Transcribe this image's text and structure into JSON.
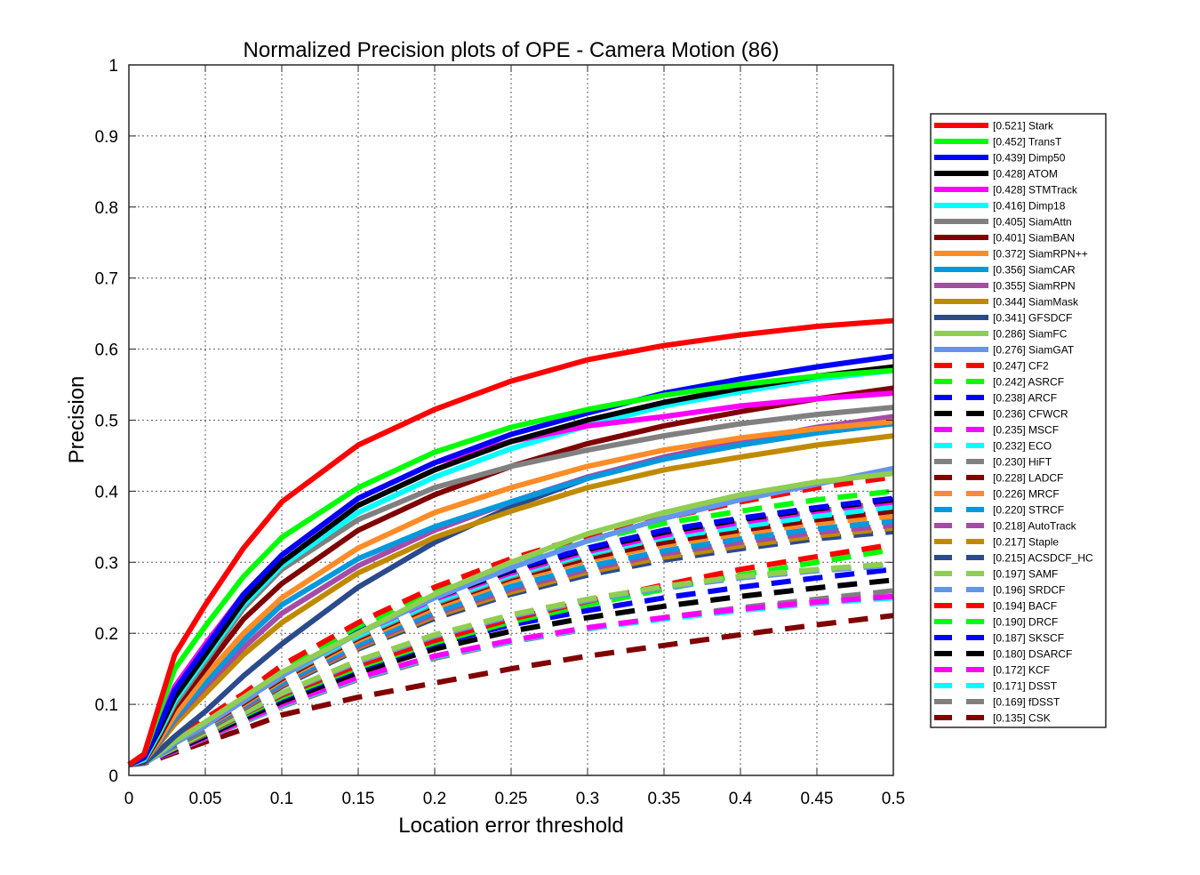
{
  "chart_data": {
    "type": "line",
    "title": "Normalized Precision plots of OPE - Camera Motion (86)",
    "xlabel": "Location error threshold",
    "ylabel": "Precision",
    "xlim": [
      0,
      0.5
    ],
    "ylim": [
      0,
      1
    ],
    "xticks": [
      "0",
      "0.05",
      "0.1",
      "0.15",
      "0.2",
      "0.25",
      "0.3",
      "0.35",
      "0.4",
      "0.45",
      "0.5"
    ],
    "yticks": [
      "0",
      "0.1",
      "0.2",
      "0.3",
      "0.4",
      "0.5",
      "0.6",
      "0.7",
      "0.8",
      "0.9",
      "1"
    ],
    "grid": true,
    "legend_position": "right-outside",
    "x": [
      0,
      0.01,
      0.02,
      0.03,
      0.05,
      0.075,
      0.1,
      0.15,
      0.2,
      0.25,
      0.3,
      0.35,
      0.4,
      0.45,
      0.5
    ],
    "series": [
      {
        "name": "[0.521] Stark",
        "color": "#ff0000",
        "style": "solid",
        "values": [
          0.015,
          0.03,
          0.1,
          0.17,
          0.24,
          0.32,
          0.385,
          0.465,
          0.515,
          0.555,
          0.585,
          0.605,
          0.62,
          0.632,
          0.64
        ]
      },
      {
        "name": "[0.452] TransT",
        "color": "#00ff00",
        "style": "solid",
        "values": [
          0.015,
          0.03,
          0.09,
          0.15,
          0.21,
          0.28,
          0.335,
          0.405,
          0.455,
          0.49,
          0.515,
          0.535,
          0.55,
          0.562,
          0.57
        ]
      },
      {
        "name": "[0.439] Dimp50",
        "color": "#0000ff",
        "style": "solid",
        "values": [
          0.015,
          0.025,
          0.07,
          0.12,
          0.18,
          0.255,
          0.31,
          0.39,
          0.44,
          0.48,
          0.51,
          0.538,
          0.558,
          0.575,
          0.59
        ]
      },
      {
        "name": "[0.428] ATOM",
        "color": "#000000",
        "style": "solid",
        "values": [
          0.015,
          0.025,
          0.065,
          0.11,
          0.17,
          0.245,
          0.3,
          0.38,
          0.43,
          0.47,
          0.5,
          0.525,
          0.545,
          0.562,
          0.575
        ]
      },
      {
        "name": "[0.428] STMTrack",
        "color": "#ff00ff",
        "style": "solid",
        "values": [
          0.015,
          0.025,
          0.075,
          0.125,
          0.185,
          0.255,
          0.31,
          0.39,
          0.44,
          0.47,
          0.492,
          0.505,
          0.52,
          0.53,
          0.538
        ]
      },
      {
        "name": "[0.416] Dimp18",
        "color": "#00ffff",
        "style": "solid",
        "values": [
          0.015,
          0.022,
          0.06,
          0.105,
          0.165,
          0.24,
          0.295,
          0.37,
          0.42,
          0.46,
          0.492,
          0.52,
          0.54,
          0.558,
          0.57
        ]
      },
      {
        "name": "[0.405] SiamAttn",
        "color": "#808080",
        "style": "solid",
        "values": [
          0.015,
          0.022,
          0.06,
          0.1,
          0.16,
          0.235,
          0.29,
          0.36,
          0.405,
          0.435,
          0.458,
          0.478,
          0.495,
          0.508,
          0.518
        ]
      },
      {
        "name": "[0.401] SiamBAN",
        "color": "#800000",
        "style": "solid",
        "values": [
          0.015,
          0.02,
          0.055,
          0.095,
          0.15,
          0.22,
          0.27,
          0.345,
          0.395,
          0.435,
          0.467,
          0.492,
          0.512,
          0.53,
          0.545
        ]
      },
      {
        "name": "[0.372] SiamRPN++",
        "color": "#ff8c26",
        "style": "solid",
        "values": [
          0.015,
          0.02,
          0.05,
          0.085,
          0.14,
          0.2,
          0.25,
          0.32,
          0.37,
          0.405,
          0.435,
          0.458,
          0.475,
          0.488,
          0.498
        ]
      },
      {
        "name": "[0.356] SiamCAR",
        "color": "#0099dd",
        "style": "solid",
        "values": [
          0.015,
          0.02,
          0.048,
          0.08,
          0.13,
          0.19,
          0.24,
          0.305,
          0.35,
          0.385,
          0.418,
          0.445,
          0.465,
          0.482,
          0.495
        ]
      },
      {
        "name": "[0.355] SiamRPN",
        "color": "#a64ca6",
        "style": "solid",
        "values": [
          0.015,
          0.02,
          0.047,
          0.078,
          0.125,
          0.18,
          0.228,
          0.295,
          0.345,
          0.385,
          0.42,
          0.448,
          0.47,
          0.49,
          0.505
        ]
      },
      {
        "name": "[0.344] SiamMask",
        "color": "#c08a00",
        "style": "solid",
        "values": [
          0.015,
          0.02,
          0.045,
          0.072,
          0.115,
          0.17,
          0.215,
          0.285,
          0.335,
          0.372,
          0.405,
          0.43,
          0.448,
          0.465,
          0.478
        ]
      },
      {
        "name": "[0.341] GFSDCF",
        "color": "#2b4a8c",
        "style": "solid",
        "values": [
          0.015,
          0.018,
          0.035,
          0.055,
          0.09,
          0.14,
          0.185,
          0.265,
          0.328,
          0.378,
          0.418,
          0.448,
          0.47,
          0.488,
          0.5
        ]
      },
      {
        "name": "[0.286] SiamFC",
        "color": "#8fce50",
        "style": "solid",
        "values": [
          0.015,
          0.018,
          0.032,
          0.048,
          0.075,
          0.11,
          0.145,
          0.2,
          0.255,
          0.3,
          0.34,
          0.37,
          0.395,
          0.413,
          0.425
        ]
      },
      {
        "name": "[0.276] SiamGAT",
        "color": "#6495ed",
        "style": "solid",
        "values": [
          0.015,
          0.017,
          0.03,
          0.045,
          0.07,
          0.105,
          0.14,
          0.2,
          0.25,
          0.292,
          0.33,
          0.362,
          0.388,
          0.41,
          0.432
        ]
      },
      {
        "name": "[0.247] CF2",
        "color": "#ff0000",
        "style": "dashed",
        "values": [
          0.015,
          0.02,
          0.035,
          0.05,
          0.08,
          0.115,
          0.155,
          0.215,
          0.265,
          0.305,
          0.337,
          0.362,
          0.385,
          0.405,
          0.42
        ]
      },
      {
        "name": "[0.242] ASRCF",
        "color": "#00ff00",
        "style": "dashed",
        "values": [
          0.015,
          0.02,
          0.034,
          0.048,
          0.078,
          0.113,
          0.15,
          0.21,
          0.258,
          0.298,
          0.33,
          0.355,
          0.372,
          0.388,
          0.4
        ]
      },
      {
        "name": "[0.238] ARCF",
        "color": "#0000ff",
        "style": "dashed",
        "values": [
          0.015,
          0.02,
          0.033,
          0.047,
          0.075,
          0.11,
          0.146,
          0.205,
          0.252,
          0.29,
          0.32,
          0.345,
          0.362,
          0.377,
          0.39
        ]
      },
      {
        "name": "[0.236] CFWCR",
        "color": "#000000",
        "style": "dashed",
        "values": [
          0.015,
          0.02,
          0.033,
          0.046,
          0.074,
          0.108,
          0.144,
          0.202,
          0.25,
          0.288,
          0.318,
          0.342,
          0.36,
          0.375,
          0.388
        ]
      },
      {
        "name": "[0.235] MSCF",
        "color": "#ff00ff",
        "style": "dashed",
        "values": [
          0.015,
          0.02,
          0.033,
          0.046,
          0.073,
          0.107,
          0.142,
          0.2,
          0.248,
          0.285,
          0.315,
          0.338,
          0.356,
          0.372,
          0.385
        ]
      },
      {
        "name": "[0.232] ECO",
        "color": "#00ffff",
        "style": "dashed",
        "values": [
          0.015,
          0.02,
          0.032,
          0.045,
          0.072,
          0.105,
          0.14,
          0.197,
          0.244,
          0.282,
          0.312,
          0.334,
          0.35,
          0.365,
          0.378
        ]
      },
      {
        "name": "[0.230] HiFT",
        "color": "#808080",
        "style": "dashed",
        "values": [
          0.015,
          0.02,
          0.032,
          0.045,
          0.071,
          0.104,
          0.138,
          0.195,
          0.242,
          0.28,
          0.31,
          0.335,
          0.355,
          0.372,
          0.385
        ]
      },
      {
        "name": "[0.228] LADCF",
        "color": "#800000",
        "style": "dashed",
        "values": [
          0.015,
          0.02,
          0.032,
          0.044,
          0.07,
          0.102,
          0.136,
          0.193,
          0.24,
          0.278,
          0.306,
          0.328,
          0.345,
          0.36,
          0.372
        ]
      },
      {
        "name": "[0.226] MRCF",
        "color": "#ff8c26",
        "style": "dashed",
        "values": [
          0.015,
          0.02,
          0.031,
          0.044,
          0.069,
          0.1,
          0.134,
          0.19,
          0.236,
          0.274,
          0.302,
          0.324,
          0.34,
          0.355,
          0.365
        ]
      },
      {
        "name": "[0.220] STRCF",
        "color": "#0099dd",
        "style": "dashed",
        "values": [
          0.015,
          0.019,
          0.03,
          0.042,
          0.067,
          0.098,
          0.13,
          0.185,
          0.23,
          0.266,
          0.294,
          0.316,
          0.333,
          0.347,
          0.358
        ]
      },
      {
        "name": "[0.218] AutoTrack",
        "color": "#a64ca6",
        "style": "dashed",
        "values": [
          0.015,
          0.019,
          0.03,
          0.042,
          0.066,
          0.096,
          0.128,
          0.182,
          0.227,
          0.262,
          0.29,
          0.312,
          0.328,
          0.342,
          0.352
        ]
      },
      {
        "name": "[0.217] Staple",
        "color": "#c08a00",
        "style": "dashed",
        "values": [
          0.015,
          0.019,
          0.03,
          0.041,
          0.065,
          0.095,
          0.127,
          0.18,
          0.224,
          0.258,
          0.286,
          0.307,
          0.323,
          0.337,
          0.348
        ]
      },
      {
        "name": "[0.215] ACSDCF_HC",
        "color": "#2b4a8c",
        "style": "dashed",
        "values": [
          0.015,
          0.019,
          0.03,
          0.041,
          0.064,
          0.094,
          0.125,
          0.178,
          0.221,
          0.255,
          0.282,
          0.303,
          0.319,
          0.333,
          0.343
        ]
      },
      {
        "name": "[0.197] SAMF",
        "color": "#8fce50",
        "style": "dashed",
        "values": [
          0.015,
          0.018,
          0.028,
          0.039,
          0.06,
          0.088,
          0.116,
          0.162,
          0.198,
          0.226,
          0.248,
          0.266,
          0.28,
          0.29,
          0.298
        ]
      },
      {
        "name": "[0.196] SRDCF",
        "color": "#6495ed",
        "style": "dashed",
        "values": [
          0.015,
          0.018,
          0.028,
          0.039,
          0.06,
          0.087,
          0.115,
          0.16,
          0.196,
          0.224,
          0.246,
          0.264,
          0.278,
          0.288,
          0.296
        ]
      },
      {
        "name": "[0.194] BACF",
        "color": "#ff0000",
        "style": "dashed",
        "values": [
          0.015,
          0.018,
          0.028,
          0.038,
          0.059,
          0.086,
          0.113,
          0.155,
          0.19,
          0.22,
          0.245,
          0.268,
          0.29,
          0.308,
          0.325
        ]
      },
      {
        "name": "[0.190] DRCF",
        "color": "#00ff00",
        "style": "dashed",
        "values": [
          0.015,
          0.018,
          0.028,
          0.038,
          0.058,
          0.084,
          0.11,
          0.152,
          0.187,
          0.216,
          0.24,
          0.262,
          0.282,
          0.3,
          0.318
        ]
      },
      {
        "name": "[0.187] SKSCF",
        "color": "#0000ff",
        "style": "dashed",
        "values": [
          0.015,
          0.018,
          0.027,
          0.037,
          0.057,
          0.083,
          0.108,
          0.15,
          0.185,
          0.212,
          0.232,
          0.25,
          0.265,
          0.278,
          0.29
        ]
      },
      {
        "name": "[0.180] DSARCF",
        "color": "#000000",
        "style": "dashed",
        "values": [
          0.015,
          0.018,
          0.027,
          0.036,
          0.055,
          0.08,
          0.104,
          0.145,
          0.178,
          0.203,
          0.222,
          0.238,
          0.252,
          0.264,
          0.275
        ]
      },
      {
        "name": "[0.172] KCF",
        "color": "#ff00ff",
        "style": "dashed",
        "values": [
          0.015,
          0.018,
          0.026,
          0.035,
          0.053,
          0.077,
          0.1,
          0.138,
          0.168,
          0.19,
          0.208,
          0.222,
          0.234,
          0.244,
          0.252
        ]
      },
      {
        "name": "[0.171] DSST",
        "color": "#00ffff",
        "style": "dashed",
        "values": [
          0.015,
          0.018,
          0.026,
          0.035,
          0.053,
          0.076,
          0.099,
          0.137,
          0.167,
          0.189,
          0.207,
          0.22,
          0.232,
          0.242,
          0.25
        ]
      },
      {
        "name": "[0.169] fDSST",
        "color": "#808080",
        "style": "dashed",
        "values": [
          0.015,
          0.018,
          0.026,
          0.034,
          0.052,
          0.075,
          0.097,
          0.135,
          0.165,
          0.188,
          0.206,
          0.222,
          0.236,
          0.248,
          0.26
        ]
      },
      {
        "name": "[0.135] CSK",
        "color": "#800000",
        "style": "dashed",
        "values": [
          0.015,
          0.017,
          0.024,
          0.032,
          0.047,
          0.065,
          0.085,
          0.11,
          0.13,
          0.15,
          0.168,
          0.183,
          0.198,
          0.212,
          0.225
        ]
      }
    ]
  }
}
